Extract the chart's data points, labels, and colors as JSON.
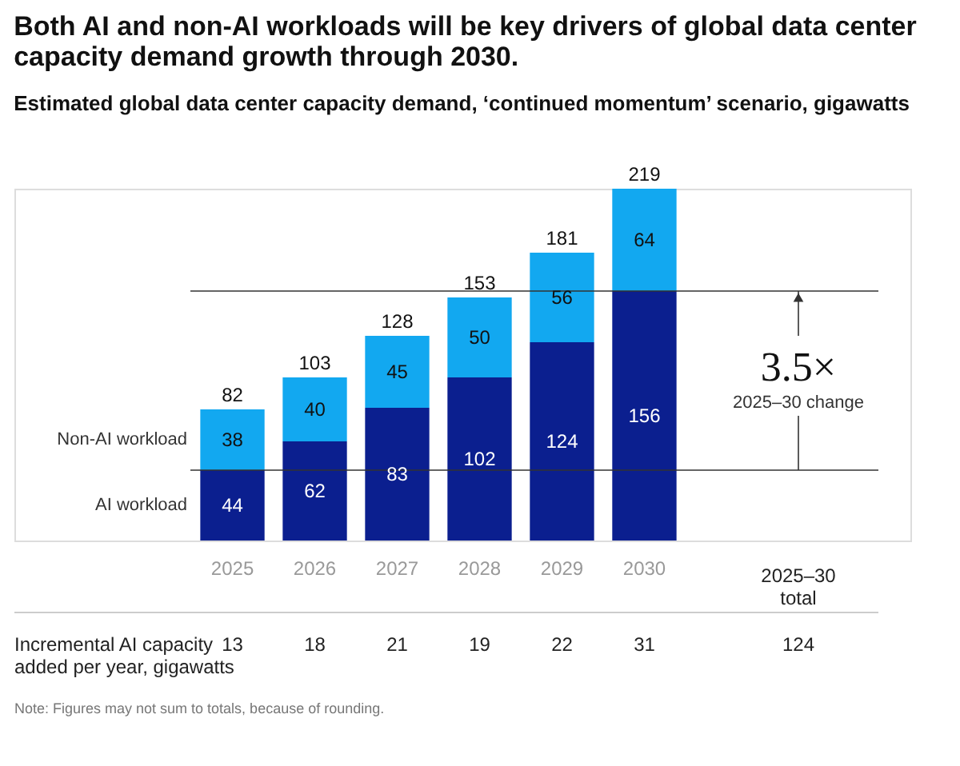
{
  "chart_data": {
    "type": "bar",
    "title": "Both AI and non-AI workloads will be key drivers of global data center capacity demand growth through 2030.",
    "subtitle": "Estimated global data center capacity demand, ‘continued momentum’ scenario, gigawatts",
    "categories": [
      "2025",
      "2026",
      "2027",
      "2028",
      "2029",
      "2030"
    ],
    "stacked": true,
    "data_labels": true,
    "tick_labels": "x",
    "series": [
      {
        "name": "AI workload",
        "color": "#0b1f8f",
        "values": [
          44,
          62,
          83,
          102,
          124,
          156
        ]
      },
      {
        "name": "Non-AI workload",
        "color": "#12a8f0",
        "values": [
          38,
          40,
          45,
          50,
          56,
          64
        ]
      }
    ],
    "totals": [
      "82",
      "103",
      "128",
      "153",
      "181",
      "219"
    ],
    "ref_lines": [
      {
        "axis": "y",
        "value": 44,
        "color": "#333333"
      },
      {
        "axis": "y",
        "value": 156,
        "color": "#333333"
      }
    ],
    "annotations": [
      "3.5×",
      "2025–30 change",
      "2025–30\ntotal",
      "Incremental AI capacity\nadded per year, gigawatts",
      "13",
      "18",
      "21",
      "19",
      "22",
      "31",
      "124",
      "Note: Figures may not sum to totals, because of rounding."
    ]
  }
}
